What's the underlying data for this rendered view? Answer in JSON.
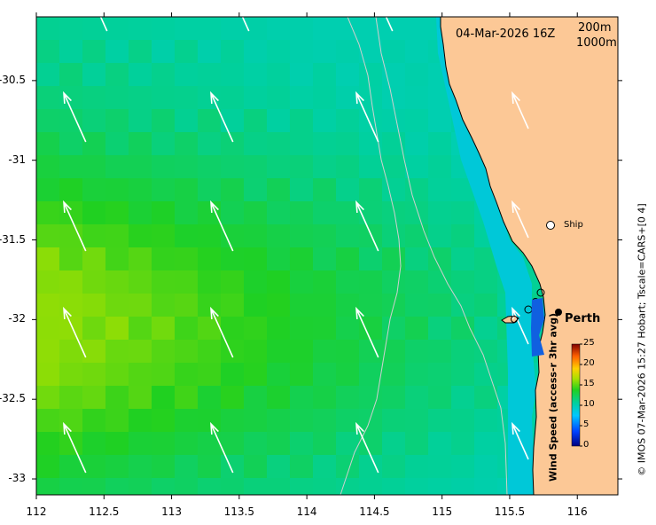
{
  "map": {
    "date_label": "04-Mar-2026 16Z",
    "contour_labels": {
      "shallow": "200m",
      "deep": "1000m"
    },
    "place_labels": {
      "ship": "Ship",
      "city": "Perth"
    },
    "credit": "© IMOS 07-Mar-2026 15:27 Hobart; Tscale=CARS+[0 4]",
    "colorbar": {
      "title": "Wind Speed (access-r 3hr avg)",
      "range": [
        0,
        25
      ],
      "ticks": [
        "0",
        "5",
        "10",
        "15",
        "20",
        "25"
      ]
    },
    "axes": {
      "lon_range": [
        112,
        116.3
      ],
      "lat_range": [
        -33.1,
        -30.1
      ],
      "x_ticks": [
        "112",
        "112.5",
        "113",
        "113.5",
        "114",
        "114.5",
        "115",
        "115.5",
        "116"
      ],
      "y_ticks": [
        "-30.5",
        "-31",
        "-31.5",
        "-32",
        "-32.5",
        "-33"
      ]
    },
    "wind_field_speed_range": [
      10,
      16
    ],
    "colors": {
      "land": "#fcc896",
      "ship": "#ffffff",
      "wind_arrow": "#ffffff"
    }
  }
}
